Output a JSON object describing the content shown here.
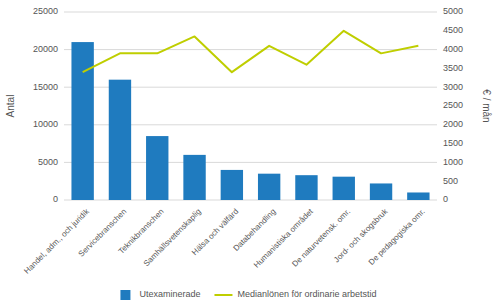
{
  "chart_data": {
    "type": "bar",
    "categories": [
      "Handel, adm., och juridik",
      "Servicebranschen",
      "Teknikbranschen",
      "Samhällsvetenskaplig",
      "Hälsa och välfärd",
      "Databehandling",
      "Humanistiska området",
      "De naturvetensk. omr.",
      "Jord- och skogsbruk",
      "De pedagogiska omr."
    ],
    "series": [
      {
        "name": "Utexaminerade",
        "color": "#1f7bbf",
        "values": [
          21000,
          16000,
          8500,
          6000,
          4000,
          3500,
          3300,
          3100,
          2200,
          1000
        ]
      },
      {
        "name": "Medianlönen för ordinarie arbetstid",
        "color": "#bfce00",
        "type": "line",
        "axis": "y2",
        "values": [
          3400,
          3900,
          3900,
          4350,
          3400,
          4100,
          3600,
          4500,
          3900,
          4100
        ]
      }
    ],
    "ylabel": "Antal",
    "y2label": "€ / mån",
    "ylim": [
      0,
      25000
    ],
    "yticks": [
      0,
      5000,
      10000,
      15000,
      20000,
      25000
    ],
    "y2lim": [
      0,
      5000
    ],
    "y2ticks": [
      0,
      500,
      1000,
      1500,
      2000,
      2500,
      3000,
      3500,
      4000,
      4500,
      5000
    ],
    "grid": true,
    "legend": "bottom"
  }
}
